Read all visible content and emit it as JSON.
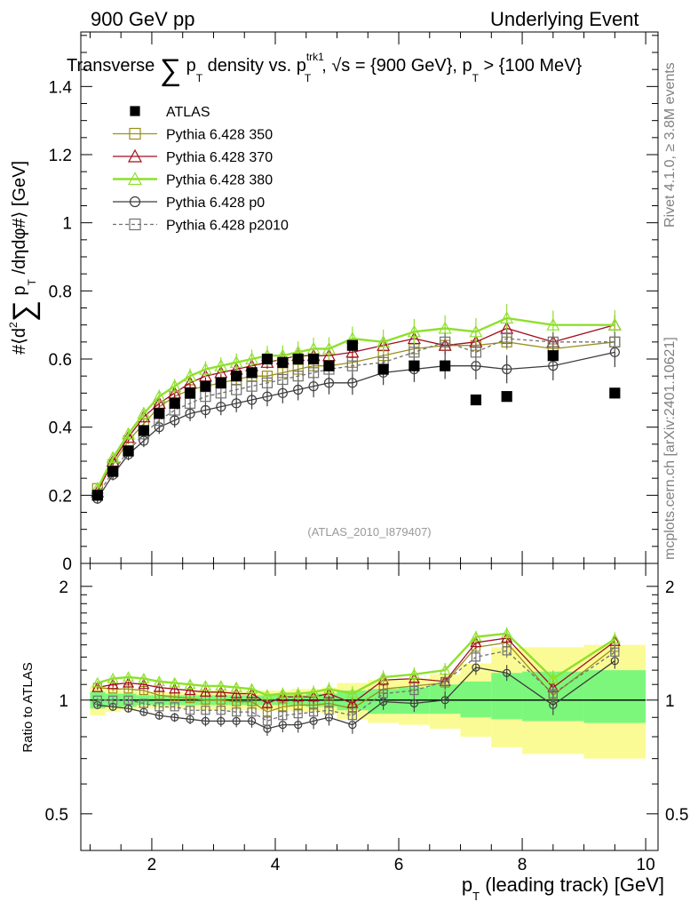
{
  "header": {
    "left": "900 GeV pp",
    "right": "Underlying Event",
    "title": "Transverse ∑ p_T density vs. p_T^trk1, √s = {900 GeV}, p_T > {100 MeV}"
  },
  "side_labels": {
    "rivet": "Rivet 4.1.0, ≥ 3.8M events",
    "mcplots": "mcplots.cern.ch [arXiv:2401.10621]"
  },
  "watermark": "(ATLAS_2010_I879407)",
  "colors": {
    "atlas": "#000000",
    "p350": "#9a8f1a",
    "p370": "#a00f1e",
    "p380": "#8ee02c",
    "p0": "#3c3c3c",
    "p2010": "#707070",
    "band_inner": "#7cf77c",
    "band_outer": "#fbfb96"
  },
  "chart_data": [
    {
      "panel": "main",
      "type": "scatter",
      "title": "Transverse ∑ p_T density vs. p_T^trk1",
      "xlabel": "p_T (leading track) [GeV]",
      "ylabel": "#⟨d² ∑ p_T /dηdφ#⟩ [GeV]",
      "xlim": [
        0.85,
        10.2
      ],
      "ylim": [
        0,
        1.56
      ],
      "yticks": [
        "0",
        "0.2",
        "0.4",
        "0.6",
        "0.8",
        "1",
        "1.2",
        "1.4"
      ],
      "yticks_values": [
        0,
        0.2,
        0.4,
        0.6,
        0.8,
        1.0,
        1.2,
        1.4
      ],
      "xticks": [
        "2",
        "4",
        "6",
        "8",
        "10"
      ],
      "xticks_values": [
        2,
        4,
        6,
        8,
        10
      ],
      "x": [
        1.12,
        1.37,
        1.62,
        1.87,
        2.12,
        2.37,
        2.62,
        2.87,
        3.12,
        3.37,
        3.62,
        3.87,
        4.12,
        4.37,
        4.62,
        4.87,
        5.25,
        5.75,
        6.25,
        6.75,
        7.25,
        7.75,
        8.5,
        9.5
      ],
      "series": [
        {
          "name": "ATLAS",
          "key": "atlas",
          "marker": "filled-square",
          "line": "none",
          "values": [
            0.2,
            0.27,
            0.33,
            0.39,
            0.44,
            0.47,
            0.5,
            0.52,
            0.53,
            0.55,
            0.56,
            0.6,
            0.59,
            0.6,
            0.6,
            0.58,
            0.64,
            0.57,
            0.58,
            0.58,
            0.48,
            0.49,
            0.61,
            0.5
          ]
        },
        {
          "name": "Pythia 6.428 350",
          "key": "p350",
          "marker": "open-square",
          "line": "solid",
          "values": [
            0.22,
            0.29,
            0.36,
            0.41,
            0.46,
            0.49,
            0.51,
            0.52,
            0.53,
            0.54,
            0.55,
            0.55,
            0.56,
            0.57,
            0.58,
            0.58,
            0.59,
            0.61,
            0.63,
            0.64,
            0.64,
            0.65,
            0.63,
            0.65
          ]
        },
        {
          "name": "Pythia 6.428 370",
          "key": "p370",
          "marker": "open-triangle",
          "line": "solid",
          "values": [
            0.21,
            0.3,
            0.37,
            0.43,
            0.47,
            0.5,
            0.53,
            0.55,
            0.56,
            0.57,
            0.58,
            0.59,
            0.6,
            0.61,
            0.61,
            0.61,
            0.62,
            0.64,
            0.66,
            0.64,
            0.65,
            0.69,
            0.65,
            0.7
          ]
        },
        {
          "name": "Pythia 6.428 380",
          "key": "p380",
          "marker": "open-triangle",
          "line": "solid-thick",
          "values": [
            0.22,
            0.31,
            0.38,
            0.44,
            0.49,
            0.52,
            0.55,
            0.57,
            0.58,
            0.59,
            0.6,
            0.61,
            0.61,
            0.62,
            0.63,
            0.63,
            0.66,
            0.65,
            0.68,
            0.69,
            0.68,
            0.72,
            0.7,
            0.7
          ]
        },
        {
          "name": "Pythia 6.428 p0",
          "key": "p0",
          "marker": "open-circle",
          "line": "solid",
          "values": [
            0.19,
            0.26,
            0.32,
            0.36,
            0.4,
            0.42,
            0.44,
            0.45,
            0.46,
            0.47,
            0.48,
            0.49,
            0.5,
            0.51,
            0.52,
            0.53,
            0.53,
            0.56,
            0.57,
            0.58,
            0.58,
            0.57,
            0.58,
            0.62
          ]
        },
        {
          "name": "Pythia 6.428 p2010",
          "key": "p2010",
          "marker": "open-square",
          "line": "dashed",
          "values": [
            0.2,
            0.27,
            0.33,
            0.38,
            0.42,
            0.45,
            0.47,
            0.49,
            0.5,
            0.51,
            0.52,
            0.53,
            0.54,
            0.55,
            0.56,
            0.57,
            0.58,
            0.59,
            0.62,
            0.65,
            0.62,
            0.66,
            0.65,
            0.65
          ]
        }
      ],
      "errors": {
        "atlas": 0.005,
        "p350": 0.008,
        "p370": 0.01,
        "p380": 0.015,
        "p0": 0.015,
        "p2010": 0.01
      }
    },
    {
      "panel": "ratio",
      "type": "line",
      "ylabel": "Ratio to ATLAS",
      "xlabel": "p_T (leading track) [GeV]",
      "xlim": [
        0.85,
        10.2
      ],
      "ylim": [
        0.4,
        2.3
      ],
      "yscale": "log",
      "yticks": [
        "0.5",
        "1",
        "2"
      ],
      "yticks_values": [
        0.5,
        1,
        2
      ],
      "xticks": [
        "2",
        "4",
        "6",
        "8",
        "10"
      ],
      "xticks_values": [
        2,
        4,
        6,
        8,
        10
      ],
      "reference": 1.0,
      "bin_edges": [
        1.0,
        1.25,
        1.5,
        1.75,
        2.0,
        2.25,
        2.5,
        2.75,
        3.0,
        3.25,
        3.5,
        3.75,
        4.0,
        4.25,
        4.5,
        4.75,
        5.0,
        5.5,
        6.0,
        6.5,
        7.0,
        7.5,
        8.0,
        9.0,
        10.0
      ],
      "band_inner": [
        [
          0.95,
          1.05
        ],
        [
          0.96,
          1.04
        ],
        [
          0.96,
          1.04
        ],
        [
          0.97,
          1.03
        ],
        [
          0.97,
          1.03
        ],
        [
          0.97,
          1.03
        ],
        [
          0.97,
          1.03
        ],
        [
          0.97,
          1.03
        ],
        [
          0.97,
          1.03
        ],
        [
          0.97,
          1.03
        ],
        [
          0.97,
          1.03
        ],
        [
          0.97,
          1.03
        ],
        [
          0.97,
          1.03
        ],
        [
          0.97,
          1.03
        ],
        [
          0.96,
          1.04
        ],
        [
          0.96,
          1.04
        ],
        [
          0.94,
          1.06
        ],
        [
          0.92,
          1.07
        ],
        [
          0.92,
          1.08
        ],
        [
          0.92,
          1.1
        ],
        [
          0.9,
          1.12
        ],
        [
          0.89,
          1.18
        ],
        [
          0.88,
          1.19
        ],
        [
          0.87,
          1.2
        ]
      ],
      "band_outer": [
        [
          0.91,
          1.09
        ],
        [
          0.93,
          1.07
        ],
        [
          0.94,
          1.06
        ],
        [
          0.95,
          1.05
        ],
        [
          0.95,
          1.05
        ],
        [
          0.95,
          1.05
        ],
        [
          0.95,
          1.05
        ],
        [
          0.94,
          1.06
        ],
        [
          0.94,
          1.06
        ],
        [
          0.94,
          1.06
        ],
        [
          0.94,
          1.06
        ],
        [
          0.94,
          1.06
        ],
        [
          0.94,
          1.06
        ],
        [
          0.93,
          1.07
        ],
        [
          0.93,
          1.07
        ],
        [
          0.92,
          1.08
        ],
        [
          0.89,
          1.11
        ],
        [
          0.87,
          1.13
        ],
        [
          0.86,
          1.14
        ],
        [
          0.84,
          1.17
        ],
        [
          0.8,
          1.25
        ],
        [
          0.75,
          1.38
        ],
        [
          0.72,
          1.38
        ],
        [
          0.7,
          1.4
        ]
      ],
      "series": [
        {
          "name": "Pythia 6.428 350",
          "key": "p350",
          "marker": "open-square",
          "line": "solid",
          "values": [
            1.08,
            1.07,
            1.07,
            1.06,
            1.03,
            1.02,
            1.01,
            1.0,
            1.0,
            0.99,
            0.99,
            0.93,
            0.96,
            0.97,
            0.97,
            0.98,
            0.95,
            1.07,
            1.09,
            1.11,
            1.38,
            1.42,
            1.03,
            1.38
          ]
        },
        {
          "name": "Pythia 6.428 370",
          "key": "p370",
          "marker": "open-triangle",
          "line": "solid",
          "values": [
            1.08,
            1.1,
            1.11,
            1.1,
            1.08,
            1.07,
            1.06,
            1.05,
            1.05,
            1.04,
            1.04,
            0.98,
            1.02,
            1.02,
            1.02,
            1.04,
            0.98,
            1.13,
            1.14,
            1.12,
            1.42,
            1.46,
            1.08,
            1.43
          ]
        },
        {
          "name": "Pythia 6.428 380",
          "key": "p380",
          "marker": "open-triangle",
          "line": "solid-thick",
          "values": [
            1.11,
            1.14,
            1.15,
            1.14,
            1.12,
            1.11,
            1.1,
            1.09,
            1.09,
            1.08,
            1.07,
            1.03,
            1.04,
            1.04,
            1.05,
            1.07,
            1.04,
            1.15,
            1.17,
            1.2,
            1.47,
            1.5,
            1.14,
            1.45
          ]
        },
        {
          "name": "Pythia 6.428 p0",
          "key": "p0",
          "marker": "open-circle",
          "line": "solid",
          "values": [
            0.97,
            0.96,
            0.95,
            0.93,
            0.91,
            0.9,
            0.89,
            0.88,
            0.88,
            0.88,
            0.88,
            0.84,
            0.86,
            0.86,
            0.88,
            0.9,
            0.86,
            0.99,
            0.98,
            1.0,
            1.22,
            1.18,
            0.97,
            1.27
          ]
        },
        {
          "name": "Pythia 6.428 p2010",
          "key": "p2010",
          "marker": "open-square",
          "line": "dashed",
          "values": [
            1.0,
            1.0,
            1.0,
            0.98,
            0.96,
            0.96,
            0.94,
            0.94,
            0.94,
            0.93,
            0.93,
            0.88,
            0.91,
            0.92,
            0.93,
            0.94,
            0.91,
            1.04,
            1.06,
            1.12,
            1.3,
            1.35,
            1.04,
            1.34
          ]
        }
      ]
    }
  ]
}
